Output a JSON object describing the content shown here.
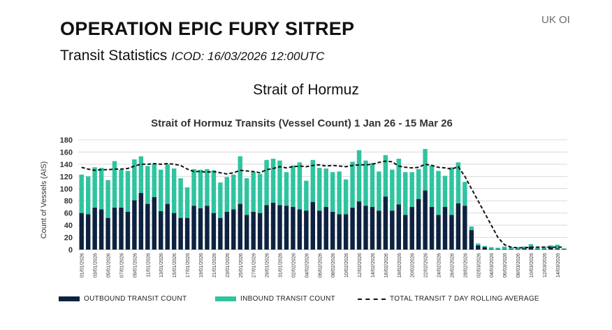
{
  "header": {
    "title": "OPERATION EPIC FURY SITREP",
    "org": "UK OI",
    "subtitle": "Transit Statistics",
    "subtitle_date": "ICOD: 16/03/2026 12:00UTC",
    "section": "Strait of Hormuz"
  },
  "colors": {
    "outbound": "#0d2240",
    "inbound": "#2ec4a0",
    "average": "#111111",
    "grid": "#d9d9d9"
  },
  "chart_data": {
    "type": "bar",
    "stacked": true,
    "title": "Strait of Hormuz Transits (Vessel Count) 1 Jan 26 - 15 Mar 26",
    "ylabel": "Count of Vessels (AIS)",
    "xlabel": "",
    "ylim": [
      0,
      180
    ],
    "yticks": [
      0,
      20,
      40,
      60,
      80,
      100,
      120,
      140,
      160,
      180
    ],
    "grid": true,
    "legend_position": "bottom",
    "categories": [
      "01/01/2026",
      "02/01/2026",
      "03/01/2026",
      "04/01/2026",
      "05/01/2026",
      "06/01/2026",
      "07/01/2026",
      "08/01/2026",
      "09/01/2026",
      "10/01/2026",
      "11/01/2026",
      "12/01/2026",
      "13/01/2026",
      "14/01/2026",
      "15/01/2026",
      "16/01/2026",
      "17/01/2026",
      "18/01/2026",
      "19/01/2026",
      "20/01/2026",
      "21/01/2026",
      "22/01/2026",
      "23/01/2026",
      "24/01/2026",
      "25/01/2026",
      "26/01/2026",
      "27/01/2026",
      "28/01/2026",
      "29/01/2026",
      "30/01/2026",
      "31/01/2026",
      "01/02/2026",
      "02/02/2026",
      "03/02/2026",
      "04/02/2026",
      "05/02/2026",
      "06/02/2026",
      "07/02/2026",
      "08/02/2026",
      "09/02/2026",
      "10/02/2026",
      "11/02/2026",
      "12/02/2026",
      "13/02/2026",
      "14/02/2026",
      "15/02/2026",
      "16/02/2026",
      "17/02/2026",
      "18/02/2026",
      "19/02/2026",
      "20/02/2026",
      "21/02/2026",
      "22/02/2026",
      "23/02/2026",
      "24/02/2026",
      "25/02/2026",
      "26/02/2026",
      "27/02/2026",
      "28/02/2026",
      "01/03/2026",
      "02/03/2026",
      "03/03/2026",
      "04/03/2026",
      "05/03/2026",
      "06/03/2026",
      "07/03/2026",
      "08/03/2026",
      "09/03/2026",
      "10/03/2026",
      "11/03/2026",
      "12/03/2026",
      "13/03/2026",
      "14/03/2026",
      "15/03/2026"
    ],
    "tick_labels": [
      "01/01/2026",
      "03/01/2026",
      "05/01/2026",
      "07/01/2026",
      "09/01/2026",
      "11/01/2026",
      "13/01/2026",
      "15/01/2026",
      "17/01/2026",
      "19/01/2026",
      "21/01/2026",
      "23/01/2026",
      "25/01/2026",
      "27/01/2026",
      "29/01/2026",
      "31/01/2026",
      "02/02/2026",
      "04/02/2026",
      "06/02/2026",
      "08/02/2026",
      "10/02/2026",
      "12/02/2026",
      "14/02/2026",
      "16/02/2026",
      "18/02/2026",
      "20/02/2026",
      "22/02/2026",
      "24/02/2026",
      "26/02/2026",
      "28/02/2026",
      "02/03/2026",
      "04/03/2026",
      "06/03/2026",
      "08/03/2026",
      "10/03/2026",
      "12/03/2026",
      "14/03/2026"
    ],
    "series": [
      {
        "name": "OUTBOUND TRANSIT COUNT",
        "kind": "bar",
        "values": [
          60,
          58,
          69,
          66,
          52,
          69,
          69,
          62,
          81,
          93,
          75,
          86,
          63,
          75,
          60,
          52,
          52,
          72,
          68,
          72,
          60,
          52,
          62,
          66,
          75,
          57,
          62,
          60,
          73,
          77,
          73,
          72,
          70,
          66,
          64,
          78,
          64,
          70,
          62,
          58,
          58,
          69,
          79,
          72,
          70,
          64,
          87,
          64,
          74,
          57,
          70,
          83,
          97,
          70,
          57,
          70,
          57,
          76,
          72,
          32,
          7,
          4,
          1,
          1,
          1,
          1,
          1,
          2,
          5,
          1,
          1,
          4,
          2,
          1
        ]
      },
      {
        "name": "INBOUND TRANSIT COUNT",
        "kind": "bar",
        "values": [
          63,
          62,
          66,
          68,
          62,
          76,
          62,
          67,
          67,
          60,
          62,
          55,
          68,
          65,
          73,
          65,
          50,
          60,
          63,
          60,
          70,
          58,
          57,
          57,
          78,
          60,
          65,
          64,
          74,
          72,
          73,
          55,
          68,
          77,
          49,
          69,
          70,
          63,
          65,
          70,
          57,
          75,
          84,
          74,
          72,
          64,
          68,
          67,
          75,
          70,
          57,
          49,
          68,
          68,
          72,
          51,
          78,
          67,
          39,
          6,
          3,
          2,
          3,
          2,
          4,
          3,
          3,
          3,
          4,
          3,
          4,
          3,
          6,
          1
        ]
      },
      {
        "name": "TOTAL TRANSIT 7 DAY ROLLING AVERAGE",
        "kind": "line",
        "values": [
          135,
          132,
          130,
          131,
          131,
          132,
          132,
          133,
          137,
          140,
          140,
          141,
          140,
          141,
          140,
          138,
          132,
          128,
          128,
          127,
          128,
          126,
          124,
          126,
          130,
          129,
          128,
          126,
          131,
          133,
          136,
          134,
          136,
          137,
          136,
          138,
          139,
          137,
          138,
          137,
          136,
          138,
          139,
          139,
          140,
          143,
          145,
          144,
          137,
          135,
          134,
          135,
          140,
          138,
          135,
          134,
          132,
          136,
          120,
          100,
          80,
          60,
          40,
          20,
          8,
          4,
          3,
          3,
          4,
          4,
          4,
          4,
          4,
          4
        ]
      }
    ]
  }
}
